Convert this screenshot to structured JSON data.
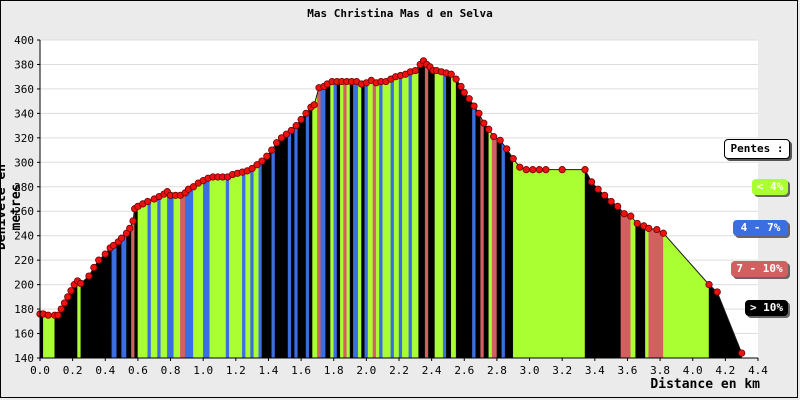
{
  "chart_data": {
    "type": "area",
    "title": "Mas Christina Mas d en Selva",
    "xlabel": "Distance en km",
    "ylabel": "Dénivelé en metres",
    "xlim": [
      0,
      4.4
    ],
    "ylim": [
      140,
      400
    ],
    "x_ticks": [
      "0.0",
      "0.2",
      "0.4",
      "0.6",
      "0.8",
      "1.0",
      "1.2",
      "1.4",
      "1.6",
      "1.8",
      "2.0",
      "2.2",
      "2.4",
      "2.6",
      "2.8",
      "3.0",
      "3.2",
      "3.4",
      "3.6",
      "3.8",
      "4.0",
      "4.2",
      "4.4"
    ],
    "y_ticks": [
      "140",
      "160",
      "180",
      "200",
      "220",
      "240",
      "260",
      "280",
      "300",
      "320",
      "340",
      "360",
      "380",
      "400"
    ],
    "legend_title": "Pentes :",
    "legend": [
      {
        "label": "< 4%",
        "color": "#aaff33"
      },
      {
        "label": "4 - 7%",
        "color": "#3b6ee0"
      },
      {
        "label": "7 - 10%",
        "color": "#d36060"
      },
      {
        "label": "> 10%",
        "color": "#000000"
      }
    ],
    "x": [
      0.0,
      0.02,
      0.05,
      0.09,
      0.11,
      0.13,
      0.15,
      0.17,
      0.19,
      0.21,
      0.23,
      0.25,
      0.3,
      0.33,
      0.36,
      0.4,
      0.43,
      0.45,
      0.48,
      0.5,
      0.53,
      0.55,
      0.57,
      0.58,
      0.6,
      0.63,
      0.66,
      0.7,
      0.73,
      0.76,
      0.78,
      0.8,
      0.83,
      0.86,
      0.89,
      0.91,
      0.94,
      0.97,
      1.0,
      1.03,
      1.06,
      1.09,
      1.12,
      1.15,
      1.18,
      1.21,
      1.24,
      1.27,
      1.3,
      1.33,
      1.36,
      1.39,
      1.42,
      1.45,
      1.48,
      1.51,
      1.54,
      1.57,
      1.6,
      1.63,
      1.66,
      1.68,
      1.71,
      1.74,
      1.76,
      1.79,
      1.82,
      1.85,
      1.88,
      1.91,
      1.94,
      1.97,
      2.0,
      2.03,
      2.06,
      2.09,
      2.12,
      2.15,
      2.18,
      2.21,
      2.24,
      2.27,
      2.3,
      2.33,
      2.35,
      2.37,
      2.39,
      2.41,
      2.43,
      2.46,
      2.49,
      2.52,
      2.55,
      2.58,
      2.6,
      2.63,
      2.66,
      2.69,
      2.72,
      2.75,
      2.78,
      2.82,
      2.86,
      2.9,
      2.94,
      2.98,
      3.02,
      3.06,
      3.1,
      3.2,
      3.34,
      3.38,
      3.42,
      3.46,
      3.5,
      3.54,
      3.58,
      3.62,
      3.66,
      3.7,
      3.73,
      3.78,
      3.82,
      4.1,
      4.15,
      4.3
    ],
    "y": [
      176,
      176,
      175,
      175,
      175,
      180,
      185,
      190,
      195,
      200,
      203,
      201,
      207,
      214,
      220,
      225,
      230,
      232,
      235,
      238,
      242,
      246,
      252,
      262,
      264,
      266,
      268,
      270,
      272,
      274,
      276,
      273,
      273,
      273,
      275,
      278,
      280,
      283,
      285,
      287,
      288,
      288,
      288,
      288,
      290,
      291,
      292,
      293,
      295,
      298,
      301,
      305,
      310,
      316,
      320,
      323,
      326,
      330,
      335,
      340,
      345,
      347,
      361,
      362,
      364,
      366,
      366,
      366,
      366,
      366,
      366,
      364,
      365,
      367,
      365,
      366,
      366,
      368,
      370,
      371,
      372,
      374,
      375,
      380,
      383,
      380,
      378,
      375,
      375,
      374,
      373,
      372,
      368,
      362,
      357,
      352,
      346,
      340,
      332,
      327,
      321,
      318,
      311,
      303,
      296,
      294,
      294,
      294,
      294,
      294,
      294,
      284,
      278,
      273,
      268,
      264,
      258,
      256,
      250,
      248,
      246,
      245,
      242,
      200,
      194,
      144
    ],
    "slope_bands": [
      {
        "from": 0.0,
        "to": 0.02,
        "pente": "> 10%"
      },
      {
        "from": 0.02,
        "to": 0.09,
        "pente": "< 4%"
      },
      {
        "from": 0.09,
        "to": 0.13,
        "pente": "> 10%"
      },
      {
        "from": 0.13,
        "to": 0.23,
        "pente": "> 10%"
      },
      {
        "from": 0.23,
        "to": 0.25,
        "pente": "< 4%"
      },
      {
        "from": 0.25,
        "to": 0.44,
        "pente": "> 10%"
      },
      {
        "from": 0.44,
        "to": 0.47,
        "pente": "4 - 7%"
      },
      {
        "from": 0.47,
        "to": 0.5,
        "pente": "> 10%"
      },
      {
        "from": 0.5,
        "to": 0.53,
        "pente": "4 - 7%"
      },
      {
        "from": 0.53,
        "to": 0.56,
        "pente": "> 10%"
      },
      {
        "from": 0.56,
        "to": 0.58,
        "pente": "7 - 10%"
      },
      {
        "from": 0.58,
        "to": 0.6,
        "pente": "> 10%"
      },
      {
        "from": 0.6,
        "to": 0.66,
        "pente": "< 4%"
      },
      {
        "from": 0.66,
        "to": 0.68,
        "pente": "4 - 7%"
      },
      {
        "from": 0.68,
        "to": 0.72,
        "pente": "< 4%"
      },
      {
        "from": 0.72,
        "to": 0.74,
        "pente": "4 - 7%"
      },
      {
        "from": 0.74,
        "to": 0.78,
        "pente": "< 4%"
      },
      {
        "from": 0.78,
        "to": 0.82,
        "pente": "4 - 7%"
      },
      {
        "from": 0.82,
        "to": 0.86,
        "pente": "< 4%"
      },
      {
        "from": 0.86,
        "to": 0.89,
        "pente": "7 - 10%"
      },
      {
        "from": 0.89,
        "to": 0.94,
        "pente": "4 - 7%"
      },
      {
        "from": 0.94,
        "to": 1.0,
        "pente": "< 4%"
      },
      {
        "from": 1.0,
        "to": 1.04,
        "pente": "4 - 7%"
      },
      {
        "from": 1.04,
        "to": 1.14,
        "pente": "< 4%"
      },
      {
        "from": 1.14,
        "to": 1.16,
        "pente": "4 - 7%"
      },
      {
        "from": 1.16,
        "to": 1.24,
        "pente": "< 4%"
      },
      {
        "from": 1.24,
        "to": 1.26,
        "pente": "4 - 7%"
      },
      {
        "from": 1.26,
        "to": 1.29,
        "pente": "< 4%"
      },
      {
        "from": 1.29,
        "to": 1.31,
        "pente": "4 - 7%"
      },
      {
        "from": 1.31,
        "to": 1.34,
        "pente": "< 4%"
      },
      {
        "from": 1.34,
        "to": 1.36,
        "pente": "4 - 7%"
      },
      {
        "from": 1.36,
        "to": 1.42,
        "pente": "> 10%"
      },
      {
        "from": 1.42,
        "to": 1.44,
        "pente": "4 - 7%"
      },
      {
        "from": 1.44,
        "to": 1.52,
        "pente": "> 10%"
      },
      {
        "from": 1.52,
        "to": 1.54,
        "pente": "4 - 7%"
      },
      {
        "from": 1.54,
        "to": 1.56,
        "pente": "> 10%"
      },
      {
        "from": 1.56,
        "to": 1.58,
        "pente": "4 - 7%"
      },
      {
        "from": 1.58,
        "to": 1.63,
        "pente": "> 10%"
      },
      {
        "from": 1.63,
        "to": 1.65,
        "pente": "4 - 7%"
      },
      {
        "from": 1.65,
        "to": 1.67,
        "pente": "> 10%"
      },
      {
        "from": 1.67,
        "to": 1.7,
        "pente": "< 4%"
      },
      {
        "from": 1.7,
        "to": 1.72,
        "pente": "7 - 10%"
      },
      {
        "from": 1.72,
        "to": 1.75,
        "pente": "4 - 7%"
      },
      {
        "from": 1.75,
        "to": 1.78,
        "pente": "> 10%"
      },
      {
        "from": 1.78,
        "to": 1.8,
        "pente": "< 4%"
      },
      {
        "from": 1.8,
        "to": 1.82,
        "pente": "4 - 7%"
      },
      {
        "from": 1.82,
        "to": 1.84,
        "pente": "> 10%"
      },
      {
        "from": 1.84,
        "to": 1.86,
        "pente": "< 4%"
      },
      {
        "from": 1.86,
        "to": 1.88,
        "pente": "7 - 10%"
      },
      {
        "from": 1.88,
        "to": 1.9,
        "pente": "< 4%"
      },
      {
        "from": 1.9,
        "to": 1.92,
        "pente": "> 10%"
      },
      {
        "from": 1.92,
        "to": 1.95,
        "pente": "4 - 7%"
      },
      {
        "from": 1.95,
        "to": 1.97,
        "pente": "< 4%"
      },
      {
        "from": 1.97,
        "to": 1.99,
        "pente": "> 10%"
      },
      {
        "from": 1.99,
        "to": 2.01,
        "pente": "4 - 7%"
      },
      {
        "from": 2.01,
        "to": 2.04,
        "pente": "< 4%"
      },
      {
        "from": 2.04,
        "to": 2.06,
        "pente": "7 - 10%"
      },
      {
        "from": 2.06,
        "to": 2.08,
        "pente": "< 4%"
      },
      {
        "from": 2.08,
        "to": 2.1,
        "pente": "4 - 7%"
      },
      {
        "from": 2.1,
        "to": 2.15,
        "pente": "< 4%"
      },
      {
        "from": 2.15,
        "to": 2.17,
        "pente": "4 - 7%"
      },
      {
        "from": 2.17,
        "to": 2.2,
        "pente": "< 4%"
      },
      {
        "from": 2.2,
        "to": 2.22,
        "pente": "4 - 7%"
      },
      {
        "from": 2.22,
        "to": 2.26,
        "pente": "< 4%"
      },
      {
        "from": 2.26,
        "to": 2.28,
        "pente": "4 - 7%"
      },
      {
        "from": 2.28,
        "to": 2.32,
        "pente": "< 4%"
      },
      {
        "from": 2.32,
        "to": 2.36,
        "pente": "> 10%"
      },
      {
        "from": 2.36,
        "to": 2.38,
        "pente": "7 - 10%"
      },
      {
        "from": 2.38,
        "to": 2.42,
        "pente": "> 10%"
      },
      {
        "from": 2.42,
        "to": 2.47,
        "pente": "< 4%"
      },
      {
        "from": 2.47,
        "to": 2.49,
        "pente": "4 - 7%"
      },
      {
        "from": 2.49,
        "to": 2.52,
        "pente": "> 10%"
      },
      {
        "from": 2.52,
        "to": 2.55,
        "pente": "< 4%"
      },
      {
        "from": 2.55,
        "to": 2.65,
        "pente": "> 10%"
      },
      {
        "from": 2.65,
        "to": 2.67,
        "pente": "4 - 7%"
      },
      {
        "from": 2.67,
        "to": 2.7,
        "pente": "> 10%"
      },
      {
        "from": 2.7,
        "to": 2.72,
        "pente": "7 - 10%"
      },
      {
        "from": 2.72,
        "to": 2.75,
        "pente": "> 10%"
      },
      {
        "from": 2.75,
        "to": 2.77,
        "pente": "< 4%"
      },
      {
        "from": 2.77,
        "to": 2.8,
        "pente": "7 - 10%"
      },
      {
        "from": 2.8,
        "to": 2.83,
        "pente": "> 10%"
      },
      {
        "from": 2.83,
        "to": 2.85,
        "pente": "4 - 7%"
      },
      {
        "from": 2.85,
        "to": 2.9,
        "pente": "> 10%"
      },
      {
        "from": 2.9,
        "to": 3.34,
        "pente": "< 4%"
      },
      {
        "from": 3.34,
        "to": 3.56,
        "pente": "> 10%"
      },
      {
        "from": 3.56,
        "to": 3.62,
        "pente": "7 - 10%"
      },
      {
        "from": 3.62,
        "to": 3.65,
        "pente": "< 4%"
      },
      {
        "from": 3.65,
        "to": 3.71,
        "pente": "> 10%"
      },
      {
        "from": 3.71,
        "to": 3.73,
        "pente": "< 4%"
      },
      {
        "from": 3.73,
        "to": 3.82,
        "pente": "7 - 10%"
      },
      {
        "from": 3.82,
        "to": 4.1,
        "pente": "< 4%"
      },
      {
        "from": 4.1,
        "to": 4.3,
        "pente": "> 10%"
      }
    ],
    "grid": true
  }
}
